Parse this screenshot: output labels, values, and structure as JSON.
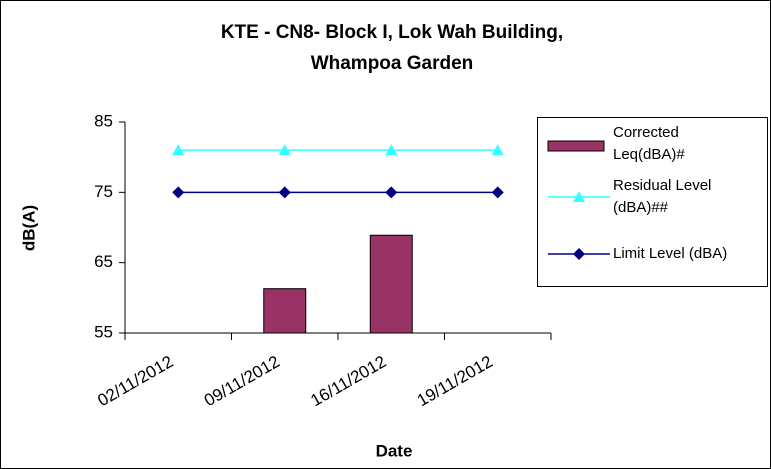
{
  "chart_data": {
    "type": "bar-line",
    "title": [
      "KTE - CN8- Block I, Lok Wah Building,",
      "Whampoa Garden"
    ],
    "xlabel": "Date",
    "ylabel": "dB(A)",
    "categories": [
      "02/11/2012",
      "09/11/2012",
      "16/11/2012",
      "19/11/2012"
    ],
    "series": [
      {
        "name": "Corrected Leq(dBA)#",
        "kind": "bar",
        "color": "#993366",
        "values": [
          null,
          61.3,
          68.9,
          null
        ]
      },
      {
        "name": "Residual Level (dBA)##",
        "kind": "line",
        "marker": "triangle",
        "color": "#33ffff",
        "values": [
          81,
          81,
          81,
          81
        ]
      },
      {
        "name": "Limit Level (dBA)",
        "kind": "line",
        "marker": "diamond",
        "color": "#000080",
        "values": [
          75,
          75,
          75,
          75
        ]
      }
    ],
    "ylim": [
      55,
      85
    ],
    "yticks": [
      55,
      65,
      75,
      85
    ],
    "legend": "right"
  }
}
